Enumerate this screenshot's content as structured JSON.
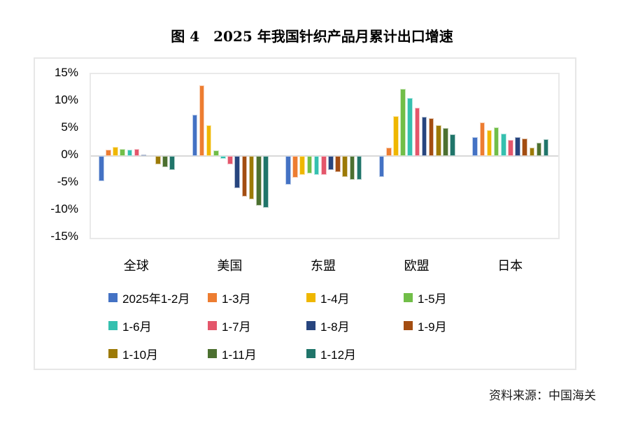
{
  "chart_data": {
    "type": "bar",
    "title": "图 4　2025 年我国针织产品月累计出口增速",
    "source": "资料来源：中国海关",
    "categories": [
      "全球",
      "美国",
      "东盟",
      "欧盟",
      "日本"
    ],
    "series": [
      {
        "name": "2025年1-2月",
        "color": "#4472C4",
        "values": [
          -4.6,
          7.6,
          -5.3,
          -3.9,
          3.4
        ]
      },
      {
        "name": "1-3月",
        "color": "#ED7D31",
        "values": [
          1.1,
          12.9,
          -4.0,
          1.6,
          6.1
        ]
      },
      {
        "name": "1-4月",
        "color": "#EFB700",
        "values": [
          1.7,
          5.6,
          -3.4,
          7.3,
          4.7
        ]
      },
      {
        "name": "1-5月",
        "color": "#71BE48",
        "values": [
          1.3,
          1.0,
          -3.2,
          12.3,
          5.3
        ]
      },
      {
        "name": "1-6月",
        "color": "#35C0AF",
        "values": [
          1.2,
          -0.5,
          -3.4,
          10.6,
          4.1
        ]
      },
      {
        "name": "1-7月",
        "color": "#E4566B",
        "values": [
          1.3,
          -1.6,
          -3.4,
          8.8,
          3.0
        ]
      },
      {
        "name": "1-8月",
        "color": "#27457E",
        "values": [
          0.3,
          -5.9,
          -2.5,
          7.2,
          3.4
        ]
      },
      {
        "name": "1-9月",
        "color": "#A34D11",
        "values": [
          0.0,
          -7.4,
          -2.9,
          6.9,
          3.2
        ]
      },
      {
        "name": "1-10月",
        "color": "#9C7A06",
        "values": [
          -1.5,
          -8.0,
          -3.9,
          5.6,
          1.5
        ]
      },
      {
        "name": "1-11月",
        "color": "#4C7030",
        "values": [
          -2.0,
          -9.1,
          -4.4,
          5.1,
          2.4
        ]
      },
      {
        "name": "1-12月",
        "color": "#20756A",
        "values": [
          -2.6,
          -9.5,
          -4.3,
          4.0,
          3.1
        ]
      }
    ],
    "y_axis": {
      "tick_labels": [
        "15%",
        "10%",
        "5%",
        "0%",
        "-5%",
        "-10%",
        "-15%"
      ],
      "tick_values": [
        15,
        10,
        5,
        0,
        -5,
        -10,
        -15
      ],
      "min": -15,
      "max": 15
    },
    "grid": false,
    "legend_position": "bottom",
    "zero_line_color": "#d9d9d9"
  }
}
